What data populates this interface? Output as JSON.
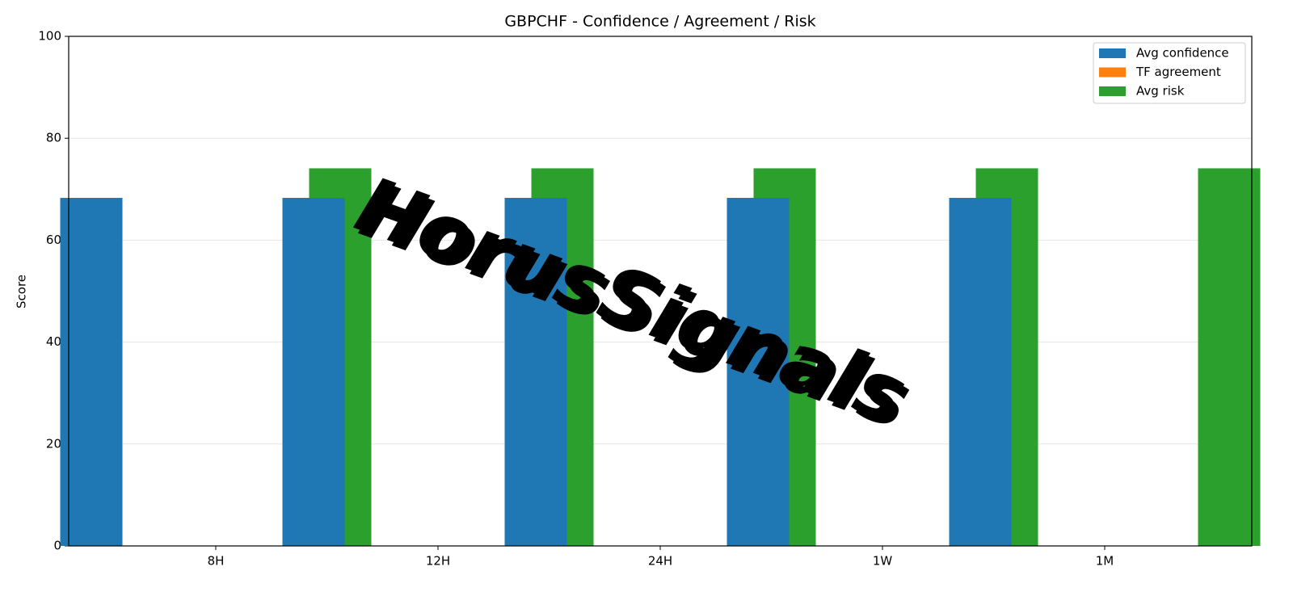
{
  "chart_data": {
    "type": "bar",
    "title": "GBPCHF - Confidence / Agreement / Risk",
    "ylabel": "Score",
    "categories": [
      "8H",
      "12H",
      "24H",
      "1W",
      "1M"
    ],
    "series": [
      {
        "name": "Avg confidence",
        "color": "#1f77b4",
        "values": [
          68.3,
          68.3,
          68.3,
          68.3,
          68.3
        ]
      },
      {
        "name": "TF agreement",
        "color": "#ff7f0e",
        "values": [
          0,
          0,
          0,
          0,
          0
        ]
      },
      {
        "name": "Avg risk",
        "color": "#2ca02c",
        "values": [
          74.1,
          74.1,
          74.1,
          74.1,
          74.1
        ]
      }
    ],
    "ylim": [
      0,
      100
    ],
    "yticks": [
      0,
      20,
      40,
      60,
      80,
      100
    ],
    "grid": true,
    "legend": "upper right",
    "watermark": "HorusSignals"
  }
}
